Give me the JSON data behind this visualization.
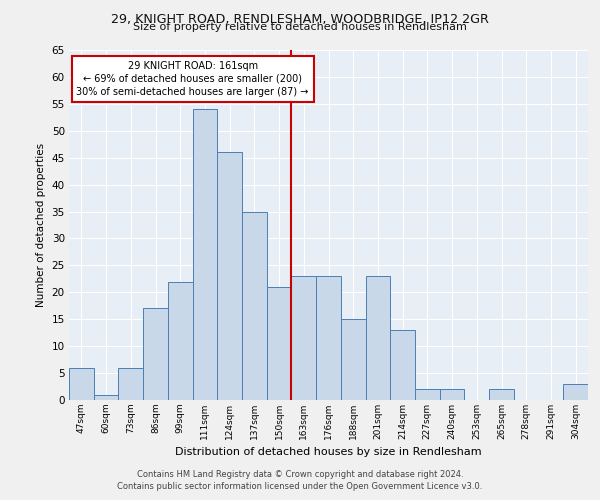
{
  "title1": "29, KNIGHT ROAD, RENDLESHAM, WOODBRIDGE, IP12 2GR",
  "title2": "Size of property relative to detached houses in Rendlesham",
  "xlabel": "Distribution of detached houses by size in Rendlesham",
  "ylabel": "Number of detached properties",
  "categories": [
    "47sqm",
    "60sqm",
    "73sqm",
    "86sqm",
    "99sqm",
    "111sqm",
    "124sqm",
    "137sqm",
    "150sqm",
    "163sqm",
    "176sqm",
    "188sqm",
    "201sqm",
    "214sqm",
    "227sqm",
    "240sqm",
    "253sqm",
    "265sqm",
    "278sqm",
    "291sqm",
    "304sqm"
  ],
  "values": [
    6,
    1,
    6,
    17,
    22,
    54,
    46,
    35,
    21,
    23,
    23,
    15,
    23,
    13,
    2,
    2,
    0,
    2,
    0,
    0,
    3
  ],
  "bar_color": "#c8d8e8",
  "bar_edge_color": "#4a7fb5",
  "vline_x_index": 9,
  "vline_color": "#cc0000",
  "annotation_text": "29 KNIGHT ROAD: 161sqm\n← 69% of detached houses are smaller (200)\n30% of semi-detached houses are larger (87) →",
  "annotation_box_color": "#ffffff",
  "annotation_box_edge": "#cc0000",
  "ylim": [
    0,
    65
  ],
  "yticks": [
    0,
    5,
    10,
    15,
    20,
    25,
    30,
    35,
    40,
    45,
    50,
    55,
    60,
    65
  ],
  "fig_bg_color": "#f0f0f0",
  "plot_bg_color": "#e8eef5",
  "footer1": "Contains HM Land Registry data © Crown copyright and database right 2024.",
  "footer2": "Contains public sector information licensed under the Open Government Licence v3.0."
}
